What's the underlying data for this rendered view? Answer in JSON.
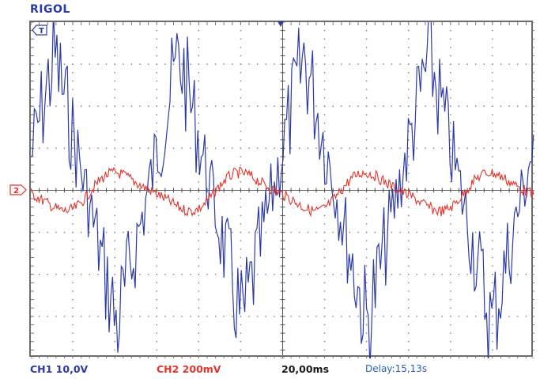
{
  "brand": "RIGOL",
  "status": {
    "ch1": "CH1 10,0V",
    "ch2": "CH2 200mV",
    "timebase": "20,00ms",
    "delay": "Delay:15,13s"
  },
  "markers": {
    "trigger_level": "T",
    "ch2_ground": "2"
  },
  "colors": {
    "ch1": "#2b3aa8",
    "ch2": "#e3342c",
    "grid": "#7a7a7a",
    "background": "#ffffff"
  },
  "icons": {
    "trigger_level": "trigger-level-marker-icon",
    "ch2_ground": "ch2-ground-marker-icon",
    "trigger_position": "trigger-position-marker-icon"
  }
}
